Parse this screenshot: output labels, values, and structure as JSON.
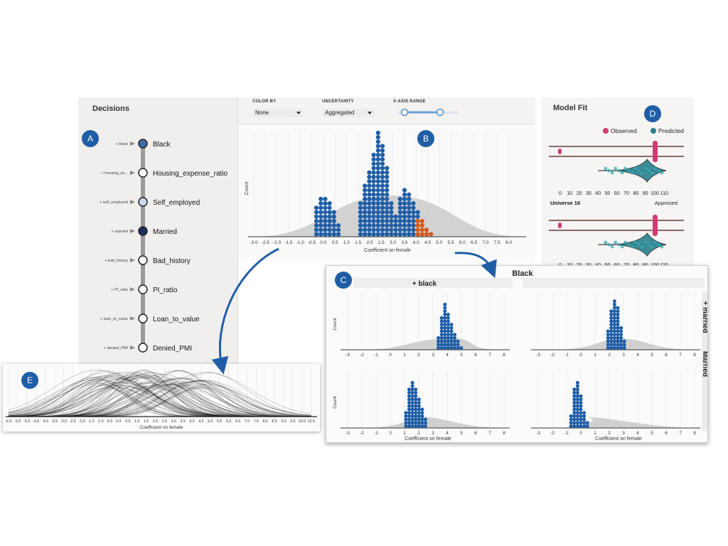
{
  "decisions": {
    "title": "Decisions",
    "items": [
      {
        "tag": "+ black",
        "label": "Black",
        "fill": "#3d6da8"
      },
      {
        "tag": "+ housing_ex...",
        "label": "Housing_expense_ratio",
        "fill": "#ffffff"
      },
      {
        "tag": "+ self_employed",
        "label": "Self_employed",
        "fill": "#c7d9ea"
      },
      {
        "tag": "+ married",
        "label": "Married",
        "fill": "#1c2f5c"
      },
      {
        "tag": "+ bad_history",
        "label": "Bad_history",
        "fill": "#ffffff"
      },
      {
        "tag": "+ PI_ratio",
        "label": "PI_ratio",
        "fill": "#ffffff"
      },
      {
        "tag": "+ loan_to_value",
        "label": "Loan_to_value",
        "fill": "#ffffff"
      },
      {
        "tag": "+ denied_PMI",
        "label": "Denied_PMI",
        "fill": "#ffffff"
      }
    ]
  },
  "controls": {
    "color_by_label": "COLOR BY",
    "color_by_value": "None",
    "uncertainty_label": "UNCERTAINTY",
    "uncertainty_value": "Aggregated",
    "xrange_label": "X-AXIS RANGE"
  },
  "main_chart": {
    "ylabel": "Count",
    "xlabel": "Coefficient on female",
    "ticks": [
      "-3.0",
      "-2.5",
      "-2.0",
      "-1.5",
      "-1.0",
      "-0.5",
      "0.0",
      "0.5",
      "1.0",
      "1.5",
      "2.0",
      "2.5",
      "3.0",
      "3.5",
      "4.0",
      "4.5",
      "5.0",
      "5.5",
      "6.0",
      "6.5",
      "7.0",
      "7.5",
      "8.0"
    ]
  },
  "model_fit": {
    "title": "Model Fit",
    "legend_observed": "Observed",
    "legend_predicted": "Predicted",
    "ticks": [
      "0",
      "10",
      "20",
      "30",
      "40",
      "50",
      "60",
      "70",
      "80",
      "90",
      "100",
      "110"
    ],
    "universe_label": "Universe 16",
    "approved_label": "Approved"
  },
  "facet": {
    "title": "Black",
    "col_label": "+ black",
    "row_label": "+ married",
    "row_label2": "Married",
    "ylabel": "Count",
    "xlabel": "Coefficient on female",
    "ticks": [
      "-3",
      "-2",
      "-1",
      "0",
      "1",
      "2",
      "3",
      "4",
      "5",
      "6",
      "7",
      "8"
    ]
  },
  "curves": {
    "xlabel": "Coefficient on female",
    "ticks": [
      "-6.0",
      "-5.5",
      "-5.0",
      "-4.5",
      "-4.0",
      "-3.5",
      "-3.0",
      "-2.5",
      "-2.0",
      "-1.5",
      "-1.0",
      "-0.5",
      "0.0",
      "0.5",
      "1.0",
      "1.5",
      "2.0",
      "2.5",
      "3.0",
      "3.5",
      "4.0",
      "4.5",
      "5.0",
      "5.5",
      "6.0",
      "6.5",
      "7.0",
      "7.5",
      "8.0",
      "8.5",
      "9.0",
      "9.5",
      "10.0",
      "10.5"
    ]
  },
  "badges": {
    "a": "A",
    "b": "B",
    "c": "C",
    "d": "D",
    "e": "E"
  },
  "colors": {
    "dot": "#1f5ea7",
    "highlight": "#d55a1c",
    "observed": "#d13b75",
    "predicted": "#2a7f8f",
    "density": "#c8c8c8",
    "arrow": "#1f5ea7"
  }
}
